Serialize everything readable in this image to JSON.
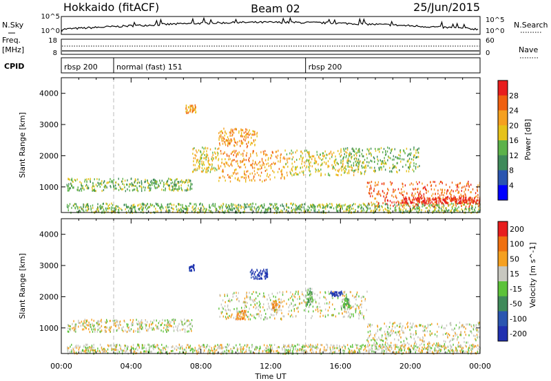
{
  "header": {
    "station": "Hokkaido (fitACF)",
    "beam": "Beam 02",
    "date": "25/Jun/2015"
  },
  "status_panels": {
    "nsky": {
      "label": "N.Sky",
      "ticks": [
        "10^5",
        "10^0"
      ]
    },
    "nsearch": {
      "label": "N.Search",
      "ticks": [
        "10^5",
        "10^0"
      ]
    },
    "freq": {
      "label_top": "Freq.",
      "label_unit": "[MHz]",
      "ticks": [
        "18",
        "8"
      ]
    },
    "nave": {
      "label": "Nave",
      "ticks": [
        "60",
        "0"
      ]
    },
    "cpid": {
      "label": "CPID",
      "segments": [
        {
          "name": "rbsp 200",
          "start_hour": 0
        },
        {
          "name": "normal (fast) 151",
          "start_hour": 3
        },
        {
          "name": "rbsp 200",
          "start_hour": 14
        }
      ]
    }
  },
  "chart_data": [
    {
      "type": "heatmap",
      "title": "",
      "xlabel": "",
      "ylabel": "Slant Range [km]",
      "xlim": [
        0,
        24
      ],
      "ylim": [
        180,
        4500
      ],
      "yticks": [
        1000,
        2000,
        3000,
        4000
      ],
      "colorbar": {
        "label": "Power [dB]",
        "ticks": [
          "4",
          "8",
          "12",
          "16",
          "20",
          "24",
          "28"
        ],
        "colors": [
          "#0000ff",
          "#2a55b0",
          "#3f8a5a",
          "#5cb24a",
          "#e6c21a",
          "#f5a020",
          "#f06010",
          "#e81e1e"
        ]
      },
      "echo_regions": [
        {
          "t0": 0.3,
          "t1": 7.5,
          "r0": 900,
          "r1": 1300,
          "level": 3
        },
        {
          "t0": 0.3,
          "t1": 24,
          "r0": 200,
          "r1": 500,
          "level": 3
        },
        {
          "t0": 7.5,
          "t1": 9.0,
          "r0": 1500,
          "r1": 2300,
          "level": 4
        },
        {
          "t0": 9.0,
          "t1": 12.8,
          "r0": 1200,
          "r1": 2200,
          "level": 5
        },
        {
          "t0": 9.0,
          "t1": 11.2,
          "r0": 2300,
          "r1": 2900,
          "level": 5
        },
        {
          "t0": 12.8,
          "t1": 17.5,
          "r0": 1400,
          "r1": 2200,
          "level": 4
        },
        {
          "t0": 17.5,
          "t1": 24,
          "r0": 400,
          "r1": 1200,
          "level": 6
        },
        {
          "t0": 19.5,
          "t1": 24,
          "r0": 500,
          "r1": 700,
          "level": 7
        },
        {
          "t0": 16.0,
          "t1": 20.5,
          "r0": 1500,
          "r1": 2300,
          "level": 3
        },
        {
          "t0": 7.1,
          "t1": 7.7,
          "r0": 3400,
          "r1": 3650,
          "level": 5
        }
      ]
    },
    {
      "type": "heatmap",
      "title": "",
      "xlabel": "Time UT",
      "ylabel": "Slant Range [km]",
      "xlim": [
        0,
        24
      ],
      "ylim": [
        180,
        4500
      ],
      "yticks": [
        1000,
        2000,
        3000,
        4000
      ],
      "xticks": [
        "00:00",
        "04:00",
        "08:00",
        "12:00",
        "16:00",
        "20:00",
        "00:00"
      ],
      "colorbar": {
        "label": "Velocity [m s^-1]",
        "ticks": [
          "200",
          "100",
          "50",
          "15",
          "-15",
          "-50",
          "-100",
          "-200"
        ],
        "colors": [
          "#2030b0",
          "#2a55b0",
          "#3f8a5a",
          "#5cc23a",
          "#c8c8c0",
          "#f5a020",
          "#f07010",
          "#e81e1e"
        ]
      },
      "echo_regions": [
        {
          "t0": 0.3,
          "t1": 7.5,
          "r0": 900,
          "r1": 1300,
          "level": 4
        },
        {
          "t0": 0.3,
          "t1": 24,
          "r0": 200,
          "r1": 500,
          "level": 4
        },
        {
          "t0": 9.0,
          "t1": 17.5,
          "r0": 1300,
          "r1": 2200,
          "level": 4
        },
        {
          "t0": 17.5,
          "t1": 24,
          "r0": 400,
          "r1": 1200,
          "level": 4
        },
        {
          "t0": 10.8,
          "t1": 11.8,
          "r0": 2600,
          "r1": 2900,
          "level": 0
        },
        {
          "t0": 7.3,
          "t1": 7.6,
          "r0": 2850,
          "r1": 3050,
          "level": 0
        },
        {
          "t0": 15.4,
          "t1": 16.1,
          "r0": 2050,
          "r1": 2200,
          "level": 0
        },
        {
          "t0": 16.0,
          "t1": 16.5,
          "r0": 1600,
          "r1": 2000,
          "level": 3
        },
        {
          "t0": 14.0,
          "t1": 14.4,
          "r0": 1700,
          "r1": 2300,
          "level": 3
        },
        {
          "t0": 10.0,
          "t1": 10.6,
          "r0": 1300,
          "r1": 1600,
          "level": 5
        },
        {
          "t0": 12.0,
          "t1": 12.5,
          "r0": 1600,
          "r1": 1900,
          "level": 5
        }
      ]
    }
  ]
}
